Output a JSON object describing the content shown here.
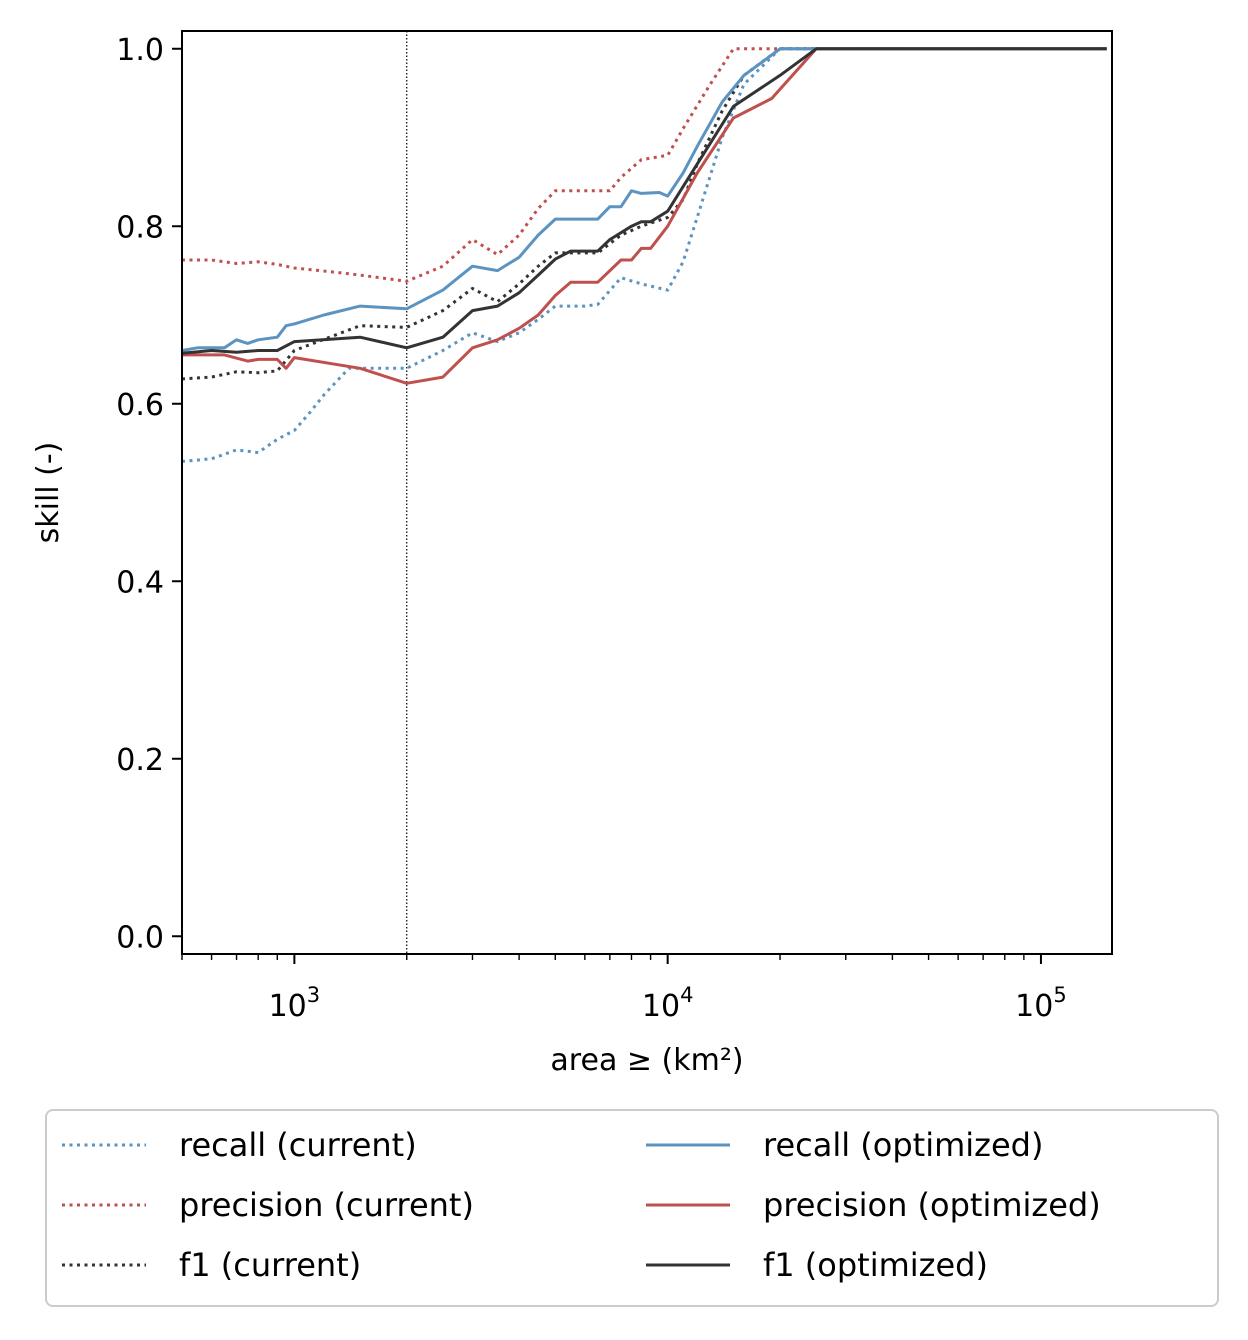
{
  "chart_data": {
    "type": "line",
    "xlabel": "area ≥ (km²)",
    "ylabel": "skill (-)",
    "xscale": "log",
    "xlim": [
      500,
      155000
    ],
    "ylim": [
      -0.02,
      1.02
    ],
    "xticks": [
      {
        "value": 1000,
        "base": "10",
        "exp": "3"
      },
      {
        "value": 10000,
        "base": "10",
        "exp": "4"
      },
      {
        "value": 100000,
        "base": "10",
        "exp": "5"
      }
    ],
    "yticks": [
      "0.0",
      "0.2",
      "0.4",
      "0.6",
      "0.8",
      "1.0"
    ],
    "grid": false,
    "vline": 2000,
    "legend": {
      "placement": "below",
      "columns": 2
    },
    "series": [
      {
        "name": "recall (current)",
        "color": "#5b93c1",
        "style": "dotted",
        "points": [
          [
            500,
            0.535
          ],
          [
            600,
            0.538
          ],
          [
            700,
            0.548
          ],
          [
            800,
            0.545
          ],
          [
            900,
            0.56
          ],
          [
            1000,
            0.57
          ],
          [
            1100,
            0.59
          ],
          [
            1200,
            0.61
          ],
          [
            1400,
            0.64
          ],
          [
            1700,
            0.64
          ],
          [
            2000,
            0.64
          ],
          [
            2500,
            0.66
          ],
          [
            3000,
            0.68
          ],
          [
            3500,
            0.67
          ],
          [
            4000,
            0.68
          ],
          [
            4500,
            0.695
          ],
          [
            5000,
            0.71
          ],
          [
            6000,
            0.71
          ],
          [
            6500,
            0.712
          ],
          [
            7500,
            0.742
          ],
          [
            8500,
            0.735
          ],
          [
            10000,
            0.728
          ],
          [
            11000,
            0.76
          ],
          [
            12000,
            0.81
          ],
          [
            14000,
            0.9
          ],
          [
            16000,
            0.96
          ],
          [
            20000,
            1.0
          ],
          [
            150000,
            1.0
          ]
        ]
      },
      {
        "name": "precision (current)",
        "color": "#c0504d",
        "style": "dotted",
        "points": [
          [
            500,
            0.762
          ],
          [
            600,
            0.762
          ],
          [
            700,
            0.758
          ],
          [
            800,
            0.76
          ],
          [
            900,
            0.757
          ],
          [
            1000,
            0.753
          ],
          [
            1300,
            0.748
          ],
          [
            1500,
            0.745
          ],
          [
            2000,
            0.738
          ],
          [
            2500,
            0.755
          ],
          [
            3000,
            0.785
          ],
          [
            3500,
            0.768
          ],
          [
            4000,
            0.79
          ],
          [
            4500,
            0.82
          ],
          [
            5000,
            0.84
          ],
          [
            6000,
            0.84
          ],
          [
            7000,
            0.84
          ],
          [
            7500,
            0.855
          ],
          [
            8500,
            0.875
          ],
          [
            10000,
            0.88
          ],
          [
            11000,
            0.91
          ],
          [
            13000,
            0.96
          ],
          [
            15000,
            1.0
          ],
          [
            150000,
            1.0
          ]
        ]
      },
      {
        "name": "f1 (current)",
        "color": "#333333",
        "style": "dotted",
        "points": [
          [
            500,
            0.628
          ],
          [
            600,
            0.63
          ],
          [
            700,
            0.636
          ],
          [
            800,
            0.635
          ],
          [
            900,
            0.637
          ],
          [
            1000,
            0.66
          ],
          [
            1500,
            0.688
          ],
          [
            2000,
            0.686
          ],
          [
            2500,
            0.705
          ],
          [
            3000,
            0.73
          ],
          [
            3500,
            0.715
          ],
          [
            4000,
            0.735
          ],
          [
            4500,
            0.755
          ],
          [
            5000,
            0.77
          ],
          [
            6000,
            0.77
          ],
          [
            6500,
            0.77
          ],
          [
            7500,
            0.79
          ],
          [
            8500,
            0.8
          ],
          [
            10000,
            0.81
          ],
          [
            11000,
            0.83
          ],
          [
            12000,
            0.87
          ],
          [
            14000,
            0.93
          ],
          [
            16000,
            0.97
          ],
          [
            20000,
            1.0
          ],
          [
            150000,
            1.0
          ]
        ]
      },
      {
        "name": "recall (optimized)",
        "color": "#5b93c1",
        "style": "solid",
        "points": [
          [
            500,
            0.66
          ],
          [
            550,
            0.663
          ],
          [
            650,
            0.663
          ],
          [
            700,
            0.672
          ],
          [
            750,
            0.668
          ],
          [
            800,
            0.672
          ],
          [
            900,
            0.675
          ],
          [
            950,
            0.688
          ],
          [
            1000,
            0.69
          ],
          [
            1200,
            0.7
          ],
          [
            1500,
            0.71
          ],
          [
            2000,
            0.707
          ],
          [
            2500,
            0.728
          ],
          [
            3000,
            0.755
          ],
          [
            3500,
            0.75
          ],
          [
            4000,
            0.765
          ],
          [
            4500,
            0.79
          ],
          [
            5000,
            0.808
          ],
          [
            6000,
            0.808
          ],
          [
            6500,
            0.808
          ],
          [
            7000,
            0.822
          ],
          [
            7500,
            0.822
          ],
          [
            8000,
            0.84
          ],
          [
            8500,
            0.837
          ],
          [
            9500,
            0.838
          ],
          [
            10000,
            0.834
          ],
          [
            11000,
            0.86
          ],
          [
            12000,
            0.89
          ],
          [
            14000,
            0.94
          ],
          [
            16000,
            0.97
          ],
          [
            20000,
            1.0
          ],
          [
            150000,
            1.0
          ]
        ]
      },
      {
        "name": "precision (optimized)",
        "color": "#c0504d",
        "style": "solid",
        "points": [
          [
            500,
            0.655
          ],
          [
            650,
            0.655
          ],
          [
            750,
            0.648
          ],
          [
            800,
            0.65
          ],
          [
            900,
            0.65
          ],
          [
            950,
            0.64
          ],
          [
            1000,
            0.652
          ],
          [
            1500,
            0.64
          ],
          [
            2000,
            0.623
          ],
          [
            2500,
            0.63
          ],
          [
            3000,
            0.663
          ],
          [
            3500,
            0.672
          ],
          [
            4000,
            0.685
          ],
          [
            4500,
            0.7
          ],
          [
            5000,
            0.722
          ],
          [
            5500,
            0.737
          ],
          [
            6000,
            0.737
          ],
          [
            6500,
            0.737
          ],
          [
            7500,
            0.762
          ],
          [
            8000,
            0.762
          ],
          [
            8500,
            0.775
          ],
          [
            9000,
            0.775
          ],
          [
            10000,
            0.8
          ],
          [
            12000,
            0.86
          ],
          [
            15000,
            0.922
          ],
          [
            19000,
            0.944
          ],
          [
            25000,
            1.0
          ],
          [
            150000,
            1.0
          ]
        ]
      },
      {
        "name": "f1 (optimized)",
        "color": "#333333",
        "style": "solid",
        "points": [
          [
            500,
            0.657
          ],
          [
            600,
            0.66
          ],
          [
            700,
            0.658
          ],
          [
            800,
            0.66
          ],
          [
            900,
            0.66
          ],
          [
            1000,
            0.67
          ],
          [
            1500,
            0.675
          ],
          [
            2000,
            0.663
          ],
          [
            2500,
            0.675
          ],
          [
            3000,
            0.705
          ],
          [
            3500,
            0.71
          ],
          [
            4000,
            0.725
          ],
          [
            4500,
            0.745
          ],
          [
            5000,
            0.763
          ],
          [
            5500,
            0.772
          ],
          [
            6000,
            0.772
          ],
          [
            6500,
            0.772
          ],
          [
            7000,
            0.785
          ],
          [
            8000,
            0.8
          ],
          [
            8500,
            0.805
          ],
          [
            9000,
            0.805
          ],
          [
            10000,
            0.817
          ],
          [
            12000,
            0.87
          ],
          [
            15000,
            0.935
          ],
          [
            20000,
            0.97
          ],
          [
            25000,
            1.0
          ],
          [
            150000,
            1.0
          ]
        ]
      }
    ]
  }
}
